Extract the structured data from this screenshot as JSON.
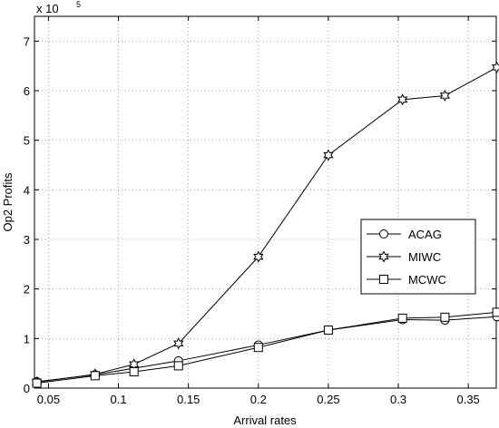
{
  "chart_data": {
    "type": "line",
    "title": "",
    "xlabel": "Arrival rates",
    "ylabel": "Op2 Profits",
    "y_multiplier": "x 10",
    "y_exponent": "5",
    "xlim": [
      0.04,
      0.37
    ],
    "ylim": [
      0,
      7.5
    ],
    "x_ticks": [
      0.05,
      0.1,
      0.15,
      0.2,
      0.25,
      0.3,
      0.35
    ],
    "x_tick_labels": [
      "0.05",
      "0.1",
      "0.15",
      "0.2",
      "0.25",
      "0.3",
      "0.35"
    ],
    "y_ticks": [
      0,
      1,
      2,
      3,
      4,
      5,
      6,
      7
    ],
    "y_tick_labels": [
      "0",
      "1",
      "2",
      "3",
      "4",
      "5",
      "6",
      "7"
    ],
    "grid": true,
    "legend_position": "right",
    "x": [
      0.0417,
      0.0833,
      0.1111,
      0.1429,
      0.2,
      0.25,
      0.303,
      0.3333,
      0.3704
    ],
    "series": [
      {
        "name": "ACAG",
        "marker": "circle",
        "values": [
          0.13,
          0.27,
          0.4,
          0.55,
          0.87,
          1.17,
          1.38,
          1.37,
          1.44
        ]
      },
      {
        "name": "MIWC",
        "marker": "star",
        "values": [
          0.12,
          0.28,
          0.48,
          0.9,
          2.65,
          4.7,
          5.82,
          5.9,
          6.47
        ]
      },
      {
        "name": "MCWC",
        "marker": "square",
        "values": [
          0.1,
          0.25,
          0.33,
          0.45,
          0.82,
          1.17,
          1.41,
          1.43,
          1.53
        ]
      }
    ]
  }
}
